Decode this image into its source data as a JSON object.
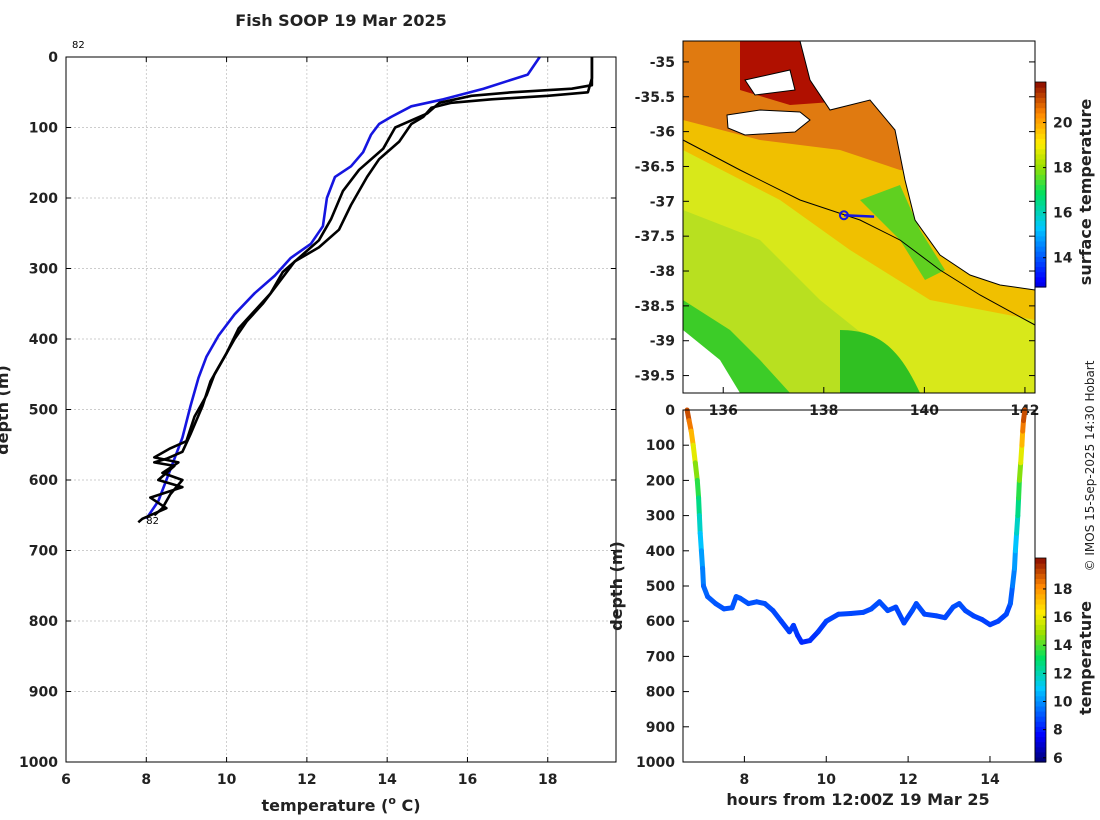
{
  "figure_title": "Fish SOOP 19 Mar 2025",
  "credit": "© IMOS 15-Sep-2025 14:30 Hobart",
  "chart_data": [
    {
      "type": "line",
      "id": "profile",
      "title": "Fish SOOP 19 Mar 2025",
      "xlabel": "temperature (",
      "xlabel_sup": "o",
      "xlabel_end": " C)",
      "ylabel": "depth (m)",
      "xlim": [
        6,
        19.7
      ],
      "ylim": [
        1000,
        0
      ],
      "xticks": [
        6,
        8,
        10,
        12,
        14,
        16,
        18
      ],
      "yticks": [
        0,
        100,
        200,
        300,
        400,
        500,
        600,
        700,
        800,
        900,
        1000
      ],
      "annotations": [
        {
          "text": "82",
          "x": 6.0,
          "y": -20
        },
        {
          "text": "82",
          "x": 8.0,
          "y": 655
        }
      ],
      "series": [
        {
          "name": "profile-blue",
          "color": "#1515e0",
          "points": [
            [
              17.8,
              0
            ],
            [
              17.5,
              25
            ],
            [
              16.4,
              45
            ],
            [
              15.4,
              60
            ],
            [
              14.6,
              70
            ],
            [
              14.1,
              85
            ],
            [
              13.8,
              95
            ],
            [
              13.6,
              110
            ],
            [
              13.4,
              135
            ],
            [
              13.1,
              155
            ],
            [
              12.7,
              170
            ],
            [
              12.5,
              200
            ],
            [
              12.4,
              240
            ],
            [
              12.1,
              265
            ],
            [
              11.6,
              285
            ],
            [
              11.2,
              310
            ],
            [
              10.7,
              335
            ],
            [
              10.2,
              365
            ],
            [
              9.8,
              395
            ],
            [
              9.5,
              425
            ],
            [
              9.3,
              455
            ],
            [
              9.1,
              495
            ],
            [
              8.9,
              540
            ],
            [
              8.6,
              585
            ],
            [
              8.3,
              630
            ],
            [
              8.0,
              655
            ]
          ]
        },
        {
          "name": "profile-black-1",
          "color": "#000000",
          "points": [
            [
              19.1,
              0
            ],
            [
              19.1,
              30
            ],
            [
              19.0,
              50
            ],
            [
              18.0,
              55
            ],
            [
              16.6,
              60
            ],
            [
              15.6,
              65
            ],
            [
              15.1,
              72
            ],
            [
              14.9,
              85
            ],
            [
              14.6,
              95
            ],
            [
              14.3,
              120
            ],
            [
              13.8,
              145
            ],
            [
              13.5,
              170
            ],
            [
              13.1,
              210
            ],
            [
              12.8,
              245
            ],
            [
              12.3,
              270
            ],
            [
              11.7,
              290
            ],
            [
              11.3,
              320
            ],
            [
              10.9,
              350
            ],
            [
              10.5,
              375
            ],
            [
              10.2,
              400
            ],
            [
              9.9,
              430
            ],
            [
              9.6,
              460
            ],
            [
              9.4,
              495
            ],
            [
              9.1,
              535
            ],
            [
              8.9,
              560
            ],
            [
              8.5,
              570
            ],
            [
              8.2,
              575
            ],
            [
              8.7,
              580
            ],
            [
              8.3,
              600
            ],
            [
              8.9,
              610
            ],
            [
              8.1,
              625
            ],
            [
              8.5,
              640
            ],
            [
              7.9,
              655
            ],
            [
              7.8,
              660
            ]
          ]
        },
        {
          "name": "profile-black-2",
          "color": "#000000",
          "points": [
            [
              19.1,
              0
            ],
            [
              19.1,
              40
            ],
            [
              18.6,
              45
            ],
            [
              17.1,
              50
            ],
            [
              16.1,
              55
            ],
            [
              15.3,
              65
            ],
            [
              15.0,
              80
            ],
            [
              14.2,
              100
            ],
            [
              13.9,
              130
            ],
            [
              13.3,
              160
            ],
            [
              12.9,
              190
            ],
            [
              12.6,
              230
            ],
            [
              12.3,
              260
            ],
            [
              11.9,
              280
            ],
            [
              11.4,
              305
            ],
            [
              11.1,
              335
            ],
            [
              10.7,
              360
            ],
            [
              10.3,
              385
            ],
            [
              10.0,
              420
            ],
            [
              9.7,
              450
            ],
            [
              9.5,
              480
            ],
            [
              9.2,
              510
            ],
            [
              9.0,
              545
            ],
            [
              8.6,
              555
            ],
            [
              8.2,
              568
            ],
            [
              8.8,
              575
            ],
            [
              8.4,
              590
            ],
            [
              8.9,
              600
            ],
            [
              8.6,
              620
            ],
            [
              8.4,
              640
            ],
            [
              8.2,
              650
            ]
          ]
        }
      ]
    },
    {
      "type": "heatmap",
      "id": "sst-map",
      "colorbar_label": "surface temperature",
      "colorbar_range": [
        12.7,
        21.8
      ],
      "colorbar_ticks": [
        14,
        16,
        18,
        20
      ],
      "xlim": [
        135.2,
        142.2
      ],
      "ylim": [
        -39.75,
        -34.7
      ],
      "xticks": [
        136,
        138,
        140,
        142
      ],
      "yticks": [
        -35,
        -35.5,
        -36,
        -36.5,
        -37,
        -37.5,
        -38,
        -38.5,
        -39,
        -39.5
      ],
      "ytick_labels": [
        "-35",
        "-35.5",
        "-36",
        "-36.5",
        "-37",
        "-37.5",
        "-38",
        "-38.5",
        "-39",
        "-39.5"
      ],
      "track": {
        "start": [
          138.4,
          -37.2
        ],
        "end": [
          139.0,
          -37.22
        ],
        "color": "#1515e0"
      }
    },
    {
      "type": "scatter",
      "id": "depth-time",
      "xlabel": "hours from 12:00Z 19 Mar 25",
      "ylabel": "depth (m)",
      "colorbar_label": "temperature",
      "xlim": [
        6.5,
        15.1
      ],
      "ylim": [
        1000,
        0
      ],
      "xticks": [
        8,
        10,
        12,
        14
      ],
      "yticks": [
        0,
        100,
        200,
        300,
        400,
        500,
        600,
        700,
        800,
        900,
        1000
      ],
      "colorbar_range": [
        5.7,
        20.2
      ],
      "colorbar_ticks": [
        6,
        8,
        10,
        12,
        14,
        16,
        18
      ],
      "trace": [
        [
          6.6,
          0,
          19.2
        ],
        [
          6.65,
          30,
          18.7
        ],
        [
          6.7,
          60,
          17.8
        ],
        [
          6.75,
          100,
          16.5
        ],
        [
          6.8,
          150,
          15.0
        ],
        [
          6.85,
          200,
          13.9
        ],
        [
          6.88,
          250,
          12.9
        ],
        [
          6.9,
          300,
          12.0
        ],
        [
          6.92,
          350,
          11.1
        ],
        [
          6.95,
          400,
          10.3
        ],
        [
          6.98,
          450,
          9.8
        ],
        [
          7.0,
          500,
          9.3
        ],
        [
          7.1,
          530,
          9.0
        ],
        [
          7.3,
          550,
          8.9
        ],
        [
          7.5,
          565,
          8.8
        ],
        [
          7.7,
          562,
          8.8
        ],
        [
          7.8,
          530,
          8.9
        ],
        [
          7.9,
          535,
          8.9
        ],
        [
          8.1,
          550,
          8.8
        ],
        [
          8.3,
          545,
          8.8
        ],
        [
          8.5,
          550,
          8.8
        ],
        [
          8.7,
          570,
          8.7
        ],
        [
          8.9,
          600,
          8.6
        ],
        [
          9.1,
          630,
          8.4
        ],
        [
          9.2,
          612,
          8.5
        ],
        [
          9.3,
          640,
          8.3
        ],
        [
          9.4,
          660,
          8.1
        ],
        [
          9.6,
          655,
          8.1
        ],
        [
          9.8,
          630,
          8.3
        ],
        [
          10.0,
          600,
          8.5
        ],
        [
          10.3,
          580,
          8.6
        ],
        [
          10.6,
          578,
          8.6
        ],
        [
          10.9,
          575,
          8.6
        ],
        [
          11.1,
          565,
          8.7
        ],
        [
          11.3,
          545,
          8.8
        ],
        [
          11.5,
          570,
          8.7
        ],
        [
          11.7,
          560,
          8.7
        ],
        [
          11.9,
          605,
          8.5
        ],
        [
          12.1,
          570,
          8.7
        ],
        [
          12.2,
          550,
          8.8
        ],
        [
          12.4,
          580,
          8.6
        ],
        [
          12.7,
          585,
          8.6
        ],
        [
          12.9,
          590,
          8.6
        ],
        [
          13.1,
          560,
          8.7
        ],
        [
          13.25,
          550,
          8.8
        ],
        [
          13.4,
          570,
          8.7
        ],
        [
          13.6,
          585,
          8.6
        ],
        [
          13.8,
          595,
          8.5
        ],
        [
          14.0,
          610,
          8.5
        ],
        [
          14.2,
          600,
          8.5
        ],
        [
          14.4,
          580,
          8.6
        ],
        [
          14.5,
          550,
          8.7
        ],
        [
          14.55,
          500,
          9.3
        ],
        [
          14.6,
          450,
          9.8
        ],
        [
          14.62,
          400,
          10.3
        ],
        [
          14.65,
          350,
          11.1
        ],
        [
          14.68,
          300,
          12.0
        ],
        [
          14.7,
          250,
          12.9
        ],
        [
          14.72,
          200,
          13.9
        ],
        [
          14.75,
          150,
          15.0
        ],
        [
          14.78,
          100,
          16.5
        ],
        [
          14.8,
          60,
          17.8
        ],
        [
          14.82,
          30,
          18.7
        ],
        [
          14.85,
          0,
          19.2
        ]
      ]
    }
  ]
}
